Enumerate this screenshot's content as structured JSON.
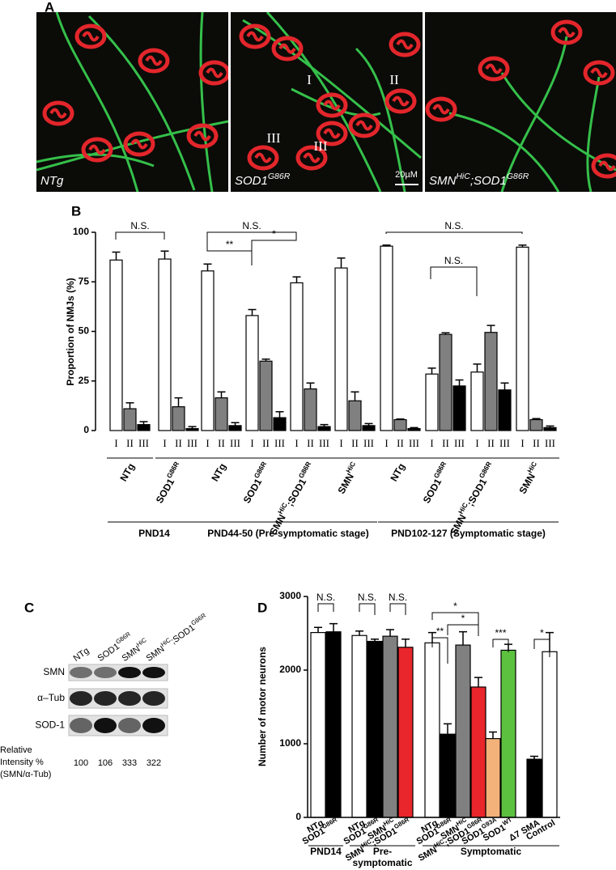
{
  "panel_labels": [
    "A",
    "B",
    "C",
    "D"
  ],
  "panel_a": {
    "images": [
      {
        "label": [
          "NTg"
        ]
      },
      {
        "label": [
          "SOD1",
          "G86R"
        ]
      },
      {
        "label": [
          "SMN",
          "HiC",
          ";SOD1",
          "G86R"
        ]
      }
    ],
    "annotations": [
      "I",
      "II",
      "III",
      "III"
    ],
    "scale_bar": "20µM"
  },
  "chart_data": [
    {
      "type": "bar",
      "ylabel": "Proportion of NMJs (%)",
      "categories": [
        [
          "NTg"
        ],
        [
          "SOD1",
          "G86R"
        ],
        [
          "NTg"
        ],
        [
          "SOD1",
          "G86R"
        ],
        [
          "SMN",
          "HiC",
          ";SOD1",
          "G86R"
        ],
        [
          "SMN",
          "HiC"
        ],
        [
          "NTg"
        ],
        [
          "SOD1",
          "G86R"
        ],
        [
          "SMN",
          "HiC",
          ";SOD1",
          "G86R"
        ],
        [
          "SMN",
          "HiC"
        ]
      ],
      "series": [
        {
          "name": "I",
          "color": "#ffffff",
          "values": [
            86,
            86.5,
            80.5,
            58,
            74.5,
            82,
            93,
            28.5,
            29.5,
            92.5
          ],
          "errors": [
            4,
            4,
            3.5,
            3,
            3,
            5,
            0.5,
            3,
            4,
            1
          ]
        },
        {
          "name": "II",
          "color": "#808080",
          "values": [
            11,
            12,
            16.5,
            35,
            21,
            15,
            5.5,
            48.5,
            49.5,
            5.5
          ],
          "errors": [
            3,
            4.5,
            3,
            1,
            3,
            4.5,
            0.3,
            0.8,
            3.5,
            0.5
          ]
        },
        {
          "name": "III",
          "color": "#000000",
          "values": [
            3,
            1,
            2.5,
            6.5,
            2,
            2.5,
            1,
            22.5,
            20.5,
            1.5
          ],
          "errors": [
            1.5,
            1,
            1.5,
            3,
            1,
            1,
            0.5,
            3,
            3.5,
            0.8
          ]
        }
      ],
      "ylim": [
        0,
        100
      ],
      "yticks": [
        0,
        25,
        50,
        75,
        100
      ],
      "stages": [
        [
          "PND14"
        ],
        [
          "PND44-50 (Pre-symptomatic stage)"
        ],
        [
          "PND102-127 (Symptomatic stage)"
        ]
      ],
      "annotations": [
        "N.S.",
        "N.S.",
        "**",
        "*",
        "N.S.",
        "N.S."
      ]
    },
    {
      "type": "bar",
      "ylabel": "Number of motor neurons",
      "categories": [
        [
          "NTg"
        ],
        [
          "SOD1",
          "G86R"
        ],
        [
          "NTg"
        ],
        [
          "SOD1",
          "G86R"
        ],
        [
          "SMN",
          "HiC"
        ],
        [
          "SMN",
          "HiC",
          ";SOD1",
          "G86R"
        ],
        [
          "NTg"
        ],
        [
          "SOD1",
          "G86R"
        ],
        [
          "SMN",
          "HiC"
        ],
        [
          "SMN",
          "HiC",
          ";SOD1",
          "G86R"
        ],
        [
          "SOD1",
          "G93A"
        ],
        [
          "SOD1",
          "WT"
        ],
        [
          "Δ7 SMA"
        ],
        [
          "Control"
        ]
      ],
      "values": [
        2510,
        2520,
        2470,
        2390,
        2460,
        2310,
        2370,
        1130,
        2340,
        1770,
        1070,
        2270,
        790,
        2250
      ],
      "errors": [
        70,
        110,
        60,
        30,
        90,
        110,
        140,
        140,
        180,
        130,
        90,
        80,
        40,
        260
      ],
      "colors": [
        "#ffffff",
        "#000000",
        "#ffffff",
        "#000000",
        "#808080",
        "#e8262b",
        "#ffffff",
        "#000000",
        "#808080",
        "#e8262b",
        "#f2b27a",
        "#5cc13f",
        "#000000",
        "#ffffff"
      ],
      "ylim": [
        0,
        3000
      ],
      "yticks": [
        0,
        1000,
        2000,
        3000
      ],
      "stages": [
        [
          "PND14"
        ],
        [
          "Pre-",
          "symptomatic"
        ],
        [
          "Symptomatic"
        ]
      ],
      "annotations": [
        "N.S.",
        "N.S.",
        "N.S.",
        "*",
        "*",
        "**",
        "***",
        "*"
      ]
    }
  ],
  "panel_c": {
    "columns": [
      [
        "NTg"
      ],
      [
        "SOD1",
        "G86R"
      ],
      [
        "SMN",
        "HiC"
      ],
      [
        "SMN",
        "HiC",
        ";SOD1",
        "G86R"
      ]
    ],
    "rows": [
      "SMN",
      "α–Tub",
      "SOD-1"
    ],
    "intensity_label": [
      "Relative",
      "Intensity %",
      "(SMN/α-Tub)"
    ],
    "intensity_values": [
      100,
      106,
      333,
      322
    ]
  }
}
